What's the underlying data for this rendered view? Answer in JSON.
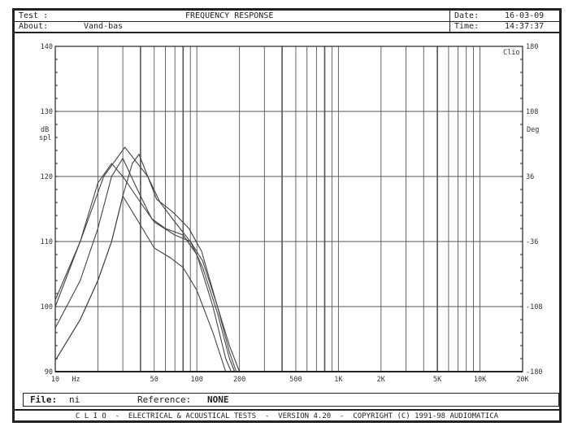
{
  "header": {
    "test_label": "Test :",
    "title": "FREQUENCY RESPONSE",
    "date_label": "Date:",
    "date": "16-03-09",
    "about_label": "About:",
    "about": "Vand-bas",
    "time_label": "Time:",
    "time": "14:37:37"
  },
  "footer": {
    "file_label": "File:",
    "file": "ni",
    "reference_label": "Reference:",
    "reference": "NONE",
    "banner": "C L I O  -  ELECTRICAL & ACOUSTICAL TESTS  -  VERSION 4.20  -  COPYRIGHT (C) 1991-98 AUDIOMATICA"
  },
  "chart_data": {
    "type": "line",
    "title": "FREQUENCY RESPONSE",
    "xscale": "log",
    "xlim": [
      10,
      20000
    ],
    "ylim": [
      90,
      140
    ],
    "y2lim": [
      -180,
      180
    ],
    "ylabel": "dB spl",
    "y2label": "Deg",
    "xunit": "Hz",
    "corner_label": "Clio",
    "grid": true,
    "xticks": [
      {
        "v": 10,
        "label": "10"
      },
      {
        "v": 50,
        "label": "50"
      },
      {
        "v": 100,
        "label": "100"
      },
      {
        "v": 200,
        "label": "200"
      },
      {
        "v": 500,
        "label": "500"
      },
      {
        "v": 1000,
        "label": "1K"
      },
      {
        "v": 2000,
        "label": "2K"
      },
      {
        "v": 5000,
        "label": "5K"
      },
      {
        "v": 10000,
        "label": "10K"
      },
      {
        "v": 20000,
        "label": "20K"
      }
    ],
    "yticks": [
      90,
      100,
      110,
      120,
      130,
      140
    ],
    "y2ticks": [
      "-180",
      "-108",
      "-36",
      "36",
      "108",
      "180"
    ],
    "series": [
      {
        "points": [
          [
            10,
            101
          ],
          [
            15,
            110
          ],
          [
            22,
            120
          ],
          [
            31,
            124.5
          ],
          [
            45,
            120
          ],
          [
            52,
            116.5
          ],
          [
            68,
            114.5
          ],
          [
            88,
            112
          ],
          [
            108,
            108.5
          ],
          [
            140,
            100
          ],
          [
            170,
            94
          ],
          [
            200,
            90
          ]
        ]
      },
      {
        "points": [
          [
            10,
            96.7
          ],
          [
            15,
            104
          ],
          [
            20,
            112
          ],
          [
            25,
            120
          ],
          [
            30,
            122.8
          ],
          [
            38,
            118
          ],
          [
            48,
            113.5
          ],
          [
            60,
            112
          ],
          [
            80,
            111
          ],
          [
            100,
            108
          ],
          [
            130,
            100
          ],
          [
            160,
            92
          ],
          [
            175,
            90
          ]
        ]
      },
      {
        "points": [
          [
            10,
            91.7
          ],
          [
            15,
            98
          ],
          [
            20,
            104
          ],
          [
            25,
            110
          ],
          [
            30,
            117
          ],
          [
            35,
            122
          ],
          [
            39,
            123.4
          ],
          [
            45,
            120
          ],
          [
            55,
            116
          ],
          [
            70,
            113
          ],
          [
            90,
            110
          ],
          [
            110,
            106
          ],
          [
            140,
            99
          ],
          [
            170,
            92
          ],
          [
            185,
            90
          ]
        ]
      },
      {
        "points": [
          [
            10,
            91.7
          ],
          [
            15,
            98
          ],
          [
            20,
            104
          ],
          [
            25,
            110
          ],
          [
            30,
            117
          ],
          [
            40,
            112.5
          ],
          [
            50,
            109
          ],
          [
            65,
            107.5
          ],
          [
            80,
            106
          ],
          [
            100,
            102.5
          ],
          [
            130,
            96
          ],
          [
            160,
            90
          ]
        ]
      },
      {
        "points": [
          [
            10,
            100
          ],
          [
            15,
            110
          ],
          [
            20,
            119
          ],
          [
            25,
            122
          ],
          [
            30,
            120
          ],
          [
            40,
            116
          ],
          [
            50,
            113
          ],
          [
            70,
            111
          ],
          [
            90,
            110
          ],
          [
            110,
            107
          ],
          [
            140,
            100
          ],
          [
            170,
            93
          ],
          [
            190,
            90
          ]
        ]
      }
    ],
    "colors": {
      "trace": "#444444",
      "grid": "#555555",
      "axis": "#222222"
    }
  }
}
